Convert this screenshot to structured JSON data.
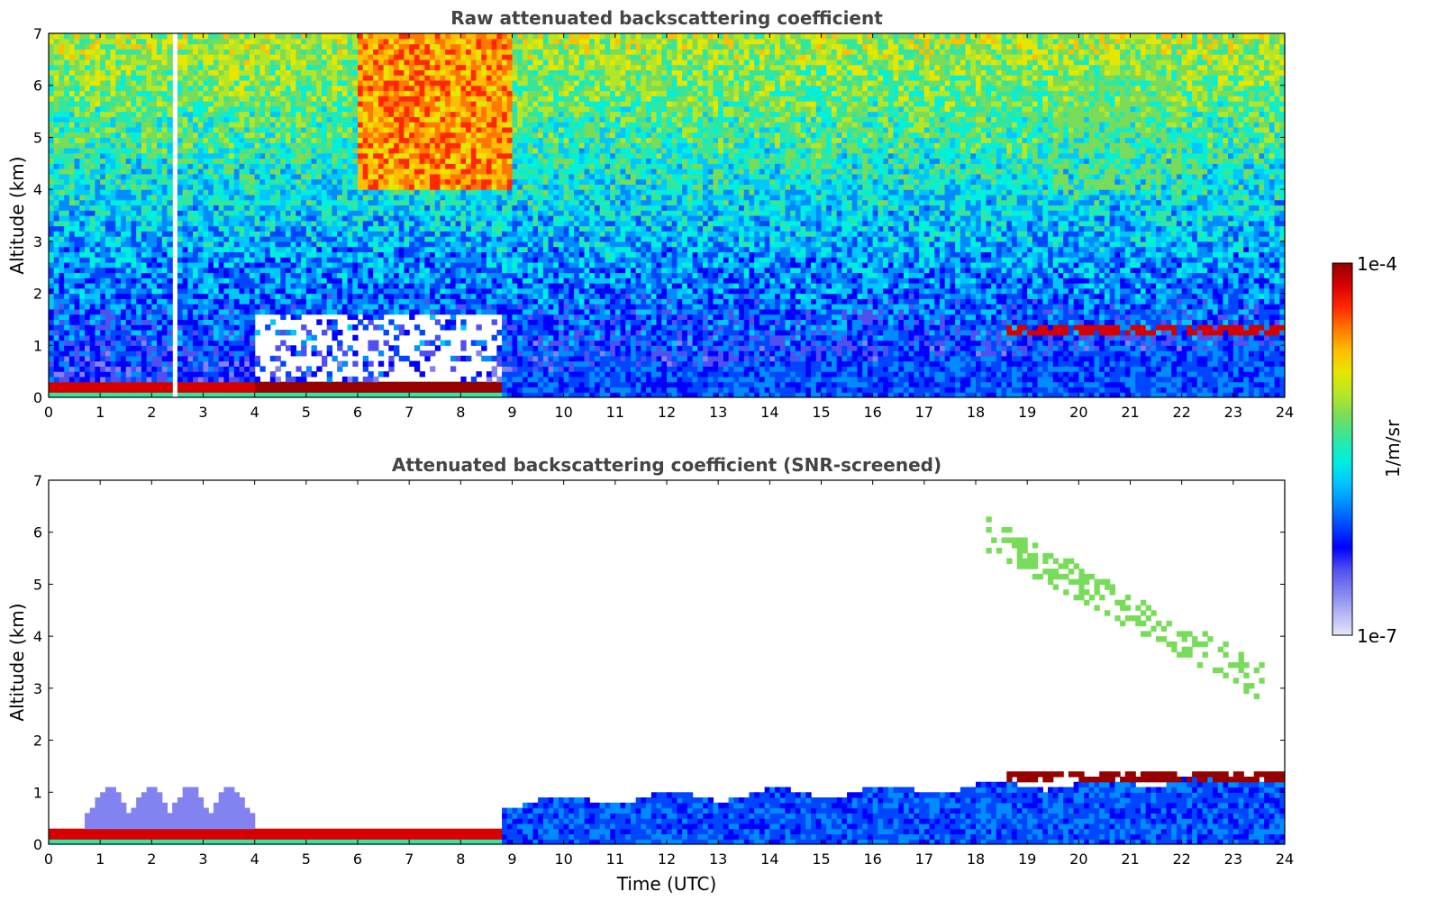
{
  "chart_data": [
    {
      "type": "heatmap",
      "title": "Raw attenuated backscattering coefficient",
      "xlabel": "",
      "ylabel": "Altitude (km)",
      "xlim": [
        0,
        24
      ],
      "ylim": [
        0,
        7
      ],
      "xticks": [
        "0",
        "1",
        "2",
        "3",
        "4",
        "5",
        "6",
        "7",
        "8",
        "9",
        "10",
        "11",
        "12",
        "13",
        "14",
        "15",
        "16",
        "17",
        "18",
        "19",
        "20",
        "21",
        "22",
        "23",
        "24"
      ],
      "yticks": [
        "0",
        "1",
        "2",
        "3",
        "4",
        "5",
        "6",
        "7"
      ],
      "colorscale": "jet",
      "log_scale": true,
      "data_gap": {
        "x_start": 2.45,
        "x_end": 2.55
      },
      "features": [
        {
          "name": "surface layer",
          "x": [
            0,
            4
          ],
          "top": 0.25,
          "level": 0.95
        },
        {
          "name": "nocturnal layer",
          "x": [
            4,
            8.8
          ],
          "top": 0.3,
          "level": 1.0
        },
        {
          "name": "boundary layer",
          "x": [
            8.8,
            24
          ],
          "top": [
            0.5,
            1.0
          ],
          "level": 0.3
        },
        {
          "name": "cloud",
          "x": [
            18.6,
            24
          ],
          "base": 1.2,
          "top": 1.45,
          "level": 0.95
        },
        {
          "name": "high noise",
          "x": [
            6,
            9
          ],
          "y": [
            4,
            7
          ],
          "level": 0.8
        },
        {
          "name": "cirrus",
          "x": [
            19.5,
            22
          ],
          "y": [
            4,
            6.2
          ],
          "level": 0.6
        }
      ]
    },
    {
      "type": "heatmap",
      "title": "Attenuated backscattering coefficient (SNR-screened)",
      "xlabel": "Time (UTC)",
      "ylabel": "Altitude (km)",
      "xlim": [
        0,
        24
      ],
      "ylim": [
        0,
        7
      ],
      "xticks": [
        "0",
        "1",
        "2",
        "3",
        "4",
        "5",
        "6",
        "7",
        "8",
        "9",
        "10",
        "11",
        "12",
        "13",
        "14",
        "15",
        "16",
        "17",
        "18",
        "19",
        "20",
        "21",
        "22",
        "23",
        "24"
      ],
      "yticks": [
        "0",
        "1",
        "2",
        "3",
        "4",
        "5",
        "6",
        "7"
      ],
      "colorscale": "jet",
      "log_scale": true,
      "features": [
        {
          "name": "surface layer",
          "x": [
            0,
            8.8
          ],
          "top": 0.3,
          "level": 0.95
        },
        {
          "name": "plumes",
          "x": [
            0.7,
            4
          ],
          "top": 1.1,
          "level": 0.1
        },
        {
          "name": "boundary layer",
          "x": [
            8.8,
            24
          ],
          "top": [
            0.9,
            1.4
          ],
          "level": 0.3
        },
        {
          "name": "cloud",
          "x": [
            18.6,
            24
          ],
          "base": 1.2,
          "top": 1.45,
          "level": 1.0
        },
        {
          "name": "cirrus",
          "x": [
            18.2,
            23.6
          ],
          "y": [
            3.1,
            6.0
          ],
          "level": 0.6
        }
      ]
    }
  ],
  "colorbar": {
    "label": "1/m/sr",
    "max_label": "1e-4",
    "min_label": "1e-7",
    "colors": [
      "#e6e6fa",
      "#b4b4f5",
      "#8282f0",
      "#5050f0",
      "#0000ff",
      "#0046ff",
      "#008cff",
      "#00c8ff",
      "#00f0dc",
      "#32e6a0",
      "#78dc5a",
      "#b4e628",
      "#e6e600",
      "#ffbe00",
      "#ff7800",
      "#ff2800",
      "#d70000",
      "#960000"
    ]
  }
}
